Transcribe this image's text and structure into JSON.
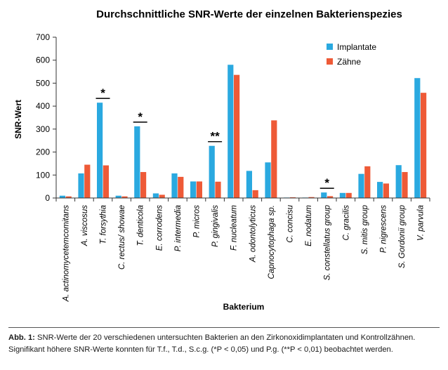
{
  "chart_data": {
    "type": "bar",
    "title": "Durchschnittliche SNR-Werte der einzelnen Bakterienspezies",
    "xlabel": "Bakterium",
    "ylabel": "SNR-Wert",
    "ylim": [
      0,
      700
    ],
    "yticks": [
      "0",
      "100",
      "200",
      "300",
      "400",
      "500",
      "600",
      "700"
    ],
    "grid": false,
    "legend_position": "top-right",
    "categories": [
      "A. actinomycetemcomitans",
      "A. viscosus",
      "T. forsythia",
      "C. rectus/ showae",
      "T. denticola",
      "E. corrodens",
      "P. intermedia",
      "P. micros",
      "P. gingivalis",
      "F. nucleatum",
      "A. odontolyticus",
      "Capnocytophaga sp.",
      "C. concisu",
      "E. nodatum",
      "S. constellatus group",
      "C. gracilis",
      "S. mitis group",
      "P. nigrescens",
      "S. Gordonii group",
      "V. parvula"
    ],
    "series": [
      {
        "name": "Implantate",
        "color": "#2aa9e0",
        "values": [
          10,
          107,
          415,
          10,
          312,
          20,
          107,
          72,
          227,
          580,
          118,
          155,
          2,
          2,
          24,
          22,
          105,
          70,
          143,
          522
        ]
      },
      {
        "name": "Zähne",
        "color": "#ee5a37",
        "values": [
          7,
          145,
          142,
          7,
          113,
          14,
          92,
          72,
          71,
          536,
          34,
          338,
          3,
          4,
          8,
          22,
          138,
          63,
          113,
          458
        ]
      }
    ],
    "annotations": [
      {
        "category_index": 2,
        "label": "*"
      },
      {
        "category_index": 4,
        "label": "*"
      },
      {
        "category_index": 8,
        "label": "**"
      },
      {
        "category_index": 14,
        "label": "*"
      }
    ]
  },
  "caption": {
    "lead": "Abb. 1:",
    "line1": " SNR-Werte der 20 verschiedenen untersuchten Bakterien an den Zirkonoxidimplantaten und Kontrollzähnen.",
    "line2": "Signifikant höhere SNR-Werte konnten für T.f., T.d., S.c.g. (*P < 0,05) und P.g. (**P < 0,01) beobachtet werden."
  }
}
